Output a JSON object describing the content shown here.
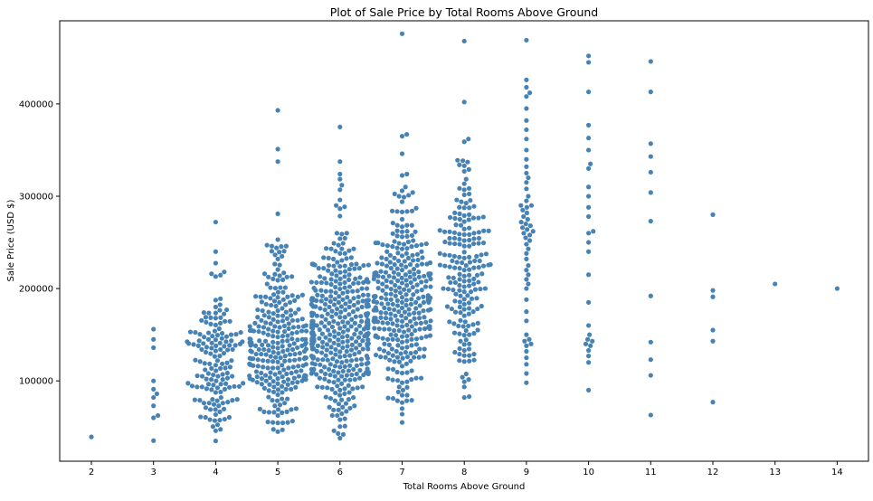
{
  "chart_data": {
    "type": "scatter",
    "subtype": "swarm",
    "title": "Plot of Sale Price by Total Rooms Above Ground",
    "xlabel": "Total Rooms Above Ground",
    "ylabel": "Sale Price (USD $)",
    "categories": [
      "2",
      "3",
      "4",
      "5",
      "6",
      "7",
      "8",
      "9",
      "10",
      "11",
      "12",
      "13",
      "14"
    ],
    "ylim": [
      13000,
      490000
    ],
    "yticks": [
      100000,
      200000,
      300000,
      400000
    ],
    "ytick_labels": [
      "100000",
      "200000",
      "300000",
      "400000"
    ],
    "grid": false,
    "legend": "none",
    "point_color": "#4682b4",
    "groups": [
      {
        "category": "2",
        "values": [
          39300
        ]
      },
      {
        "category": "3",
        "values": [
          35300,
          60000,
          62500,
          73000,
          82000,
          86000,
          91000,
          100000,
          136000,
          145000,
          156000
        ]
      },
      {
        "category": "4",
        "count": 150,
        "min": 35000,
        "max": 272000,
        "center": 122000,
        "spread": 38000
      },
      {
        "category": "5",
        "count": 275,
        "min": 45000,
        "max": 393000,
        "center": 138000,
        "spread": 44000
      },
      {
        "category": "6",
        "count": 402,
        "min": 38000,
        "max": 375000,
        "center": 158000,
        "spread": 46000
      },
      {
        "category": "7",
        "count": 329,
        "min": 55000,
        "max": 476000,
        "center": 185000,
        "spread": 52000
      },
      {
        "category": "8",
        "count": 187,
        "min": 82000,
        "max": 468000,
        "center": 210000,
        "spread": 62000
      },
      {
        "category": "9",
        "values": [
          98000,
          108000,
          118000,
          125000,
          132000,
          138000,
          140000,
          143000,
          145000,
          150000,
          165000,
          175000,
          188000,
          200000,
          205000,
          210000,
          215000,
          220000,
          225000,
          232000,
          238000,
          243000,
          248000,
          252000,
          255000,
          258000,
          260000,
          262000,
          264000,
          266000,
          268000,
          270000,
          272000,
          275000,
          278000,
          282000,
          285000,
          288000,
          290000,
          290000,
          295000,
          300000,
          308000,
          315000,
          320000,
          325000,
          332000,
          340000,
          350000,
          362000,
          372000,
          382000,
          395000,
          408000,
          412000,
          418000,
          426000,
          469000
        ]
      },
      {
        "category": "10",
        "values": [
          90000,
          120000,
          127000,
          133000,
          138000,
          140000,
          143000,
          145000,
          150000,
          160000,
          185000,
          215000,
          240000,
          250000,
          260000,
          262000,
          278000,
          288000,
          300000,
          310000,
          330000,
          335000,
          350000,
          363000,
          377000,
          413000,
          445000,
          452000
        ]
      },
      {
        "category": "11",
        "values": [
          63000,
          106000,
          123000,
          142000,
          192000,
          273000,
          304000,
          326000,
          343000,
          357000,
          413000,
          446000
        ]
      },
      {
        "category": "12",
        "values": [
          77000,
          143000,
          155000,
          191000,
          198000,
          280000
        ]
      },
      {
        "category": "13",
        "values": [
          205000
        ]
      },
      {
        "category": "14",
        "values": [
          200000
        ]
      }
    ]
  }
}
